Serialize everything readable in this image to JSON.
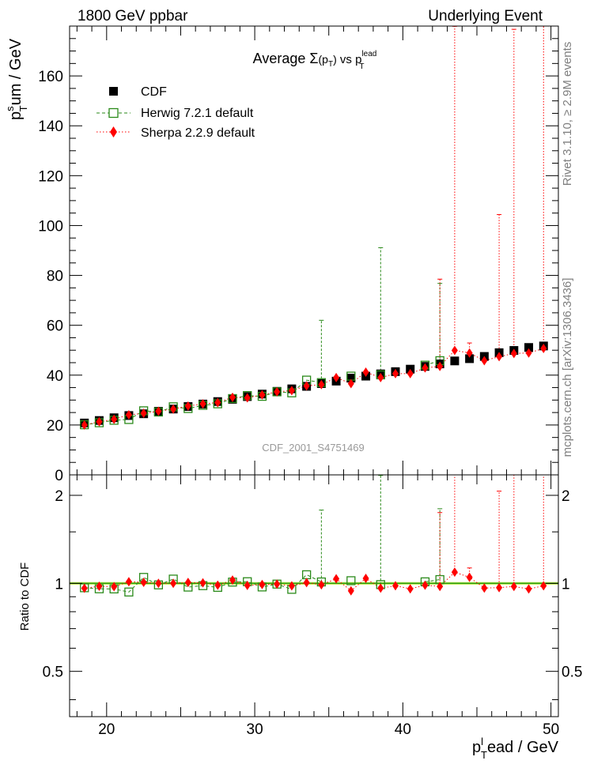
{
  "header": {
    "left": "1800 GeV ppbar",
    "right": "Underlying Event"
  },
  "side_labels": {
    "rivet": "Rivet 3.1.10, ≥ 2.9M events",
    "mcplots": "mcplots.cern.ch [arXiv:1306.3436]"
  },
  "watermark": "CDF_2001_S4751469",
  "chart_data": [
    {
      "type": "scatter",
      "panel": "main",
      "title": {
        "pre": "Average ",
        "sigma": "Σ",
        "arg": "(p",
        "argsub": "T",
        "argclose": ")",
        "mid": " vs p",
        "sup": "lead",
        "sub": "T"
      },
      "ylabel": {
        "p": "p",
        "sup": "s",
        "sub": "T",
        "rest": "um / GeV"
      },
      "xlabel": {
        "p": "p",
        "sup": "l",
        "sub": "T",
        "rest": "ead / GeV"
      },
      "xlim": [
        17.5,
        50.5
      ],
      "ylim": [
        0,
        180
      ],
      "xticks": [
        20,
        30,
        40,
        50
      ],
      "yticks": [
        0,
        20,
        40,
        60,
        80,
        100,
        120,
        140,
        160
      ],
      "tick_labels_x": [
        "20",
        "30",
        "40",
        "50"
      ],
      "tick_labels_y": [
        "0",
        "20",
        "40",
        "60",
        "80",
        "100",
        "120",
        "140",
        "160"
      ],
      "legend_position": "top-left",
      "legend": [
        "CDF",
        "Herwig 7.2.1 default",
        "Sherpa 2.2.9 default"
      ],
      "colors": {
        "cdf": "#000000",
        "herwig": "#2a8a1a",
        "sherpa": "#ff0000",
        "band": "#c8ee50"
      },
      "x": [
        18.5,
        19.5,
        20.5,
        21.5,
        22.5,
        23.5,
        24.5,
        25.5,
        26.5,
        27.5,
        28.5,
        29.5,
        30.5,
        31.5,
        32.5,
        33.5,
        34.5,
        35.5,
        36.5,
        37.5,
        38.5,
        39.5,
        40.5,
        41.5,
        42.5,
        43.5,
        44.5,
        45.5,
        46.5,
        47.5,
        48.5,
        49.5
      ],
      "series": [
        {
          "name": "CDF",
          "values": [
            20.8,
            21.8,
            22.9,
            23.8,
            24.5,
            25.5,
            26.4,
            27.4,
            28.4,
            29.4,
            30.3,
            31.4,
            32.4,
            33.5,
            34.5,
            35.5,
            36.6,
            37.6,
            38.8,
            39.6,
            40.5,
            41.4,
            42.4,
            43.5,
            44.5,
            45.7,
            46.6,
            47.5,
            49.0,
            49.9,
            51.1,
            51.7
          ]
        },
        {
          "name": "Herwig 7.2.1 default",
          "values": [
            20.1,
            20.9,
            21.9,
            22.2,
            25.7,
            25.2,
            27.3,
            26.6,
            27.9,
            28.5,
            30.6,
            31.8,
            31.5,
            33.3,
            32.9,
            38.0,
            37.0,
            null,
            39.6,
            null,
            40.1,
            null,
            null,
            44.0,
            45.8,
            null,
            null,
            null,
            null,
            null,
            null,
            null
          ],
          "err_up": [
            0,
            0,
            0,
            0,
            0,
            0,
            0,
            0,
            0,
            0,
            0,
            0,
            0,
            0,
            0,
            0,
            25,
            0,
            0,
            0,
            51,
            0,
            0,
            0,
            31,
            0,
            0,
            0,
            0,
            0,
            0,
            0
          ]
        },
        {
          "name": "Sherpa 2.2.9 default",
          "values": [
            20.0,
            21.3,
            22.3,
            24.1,
            24.7,
            25.5,
            26.4,
            27.6,
            28.5,
            29.0,
            31.1,
            30.9,
            32.1,
            33.3,
            33.8,
            35.7,
            36.2,
            39.0,
            36.6,
            41.2,
            39.0,
            40.6,
            40.6,
            42.9,
            43.5,
            49.9,
            48.9,
            45.8,
            47.4,
            48.7,
            48.9,
            50.7
          ],
          "err_up": [
            0,
            0,
            0,
            0,
            0,
            0,
            0,
            0,
            0,
            0,
            0,
            0,
            0,
            0,
            0,
            0,
            0,
            0,
            0,
            0,
            0,
            0,
            0,
            0,
            35,
            130,
            4,
            0,
            57,
            130,
            0,
            130
          ]
        }
      ]
    },
    {
      "type": "scatter",
      "panel": "ratio",
      "ylabel": "Ratio to CDF",
      "ylim": [
        0.35,
        2.35
      ],
      "yticks": [
        0.5,
        1,
        2
      ],
      "tick_labels_y": [
        "0.5",
        "1",
        "2"
      ],
      "reference": 1.0,
      "band_halfwidth": 0.01,
      "series": [
        {
          "name": "Herwig 7.2.1 default",
          "values": [
            0.966,
            0.958,
            0.957,
            0.934,
            1.048,
            0.988,
            1.034,
            0.971,
            0.982,
            0.969,
            1.01,
            1.013,
            0.972,
            0.994,
            0.954,
            1.07,
            1.011,
            null,
            1.021,
            null,
            0.99,
            null,
            null,
            1.012,
            1.03,
            null,
            null,
            null,
            null,
            null,
            null,
            null
          ],
          "err_up": [
            0,
            0,
            0,
            0,
            0,
            0,
            0,
            0,
            0,
            0,
            0,
            0,
            0,
            0,
            0,
            0,
            0.77,
            0,
            0,
            0,
            1.35,
            0,
            0,
            0,
            0.77,
            0,
            0,
            0,
            0,
            0,
            0,
            0
          ]
        },
        {
          "name": "Sherpa 2.2.9 default",
          "values": [
            0.962,
            0.977,
            0.974,
            1.013,
            1.008,
            1.0,
            1.0,
            1.007,
            1.004,
            0.986,
            1.026,
            0.984,
            0.991,
            0.994,
            0.98,
            1.006,
            0.989,
            1.037,
            0.943,
            1.04,
            0.963,
            0.981,
            0.958,
            0.986,
            0.976,
            1.092,
            1.049,
            0.964,
            0.967,
            0.976,
            0.957,
            0.981
          ],
          "err_up": [
            0,
            0,
            0,
            0,
            0,
            0,
            0,
            0,
            0,
            0,
            0,
            0,
            0,
            0,
            0,
            0,
            0,
            0,
            0,
            0,
            0,
            0,
            0,
            0,
            0.77,
            1.4,
            0.08,
            0,
            1.1,
            1.4,
            0,
            1.4
          ]
        }
      ]
    }
  ]
}
